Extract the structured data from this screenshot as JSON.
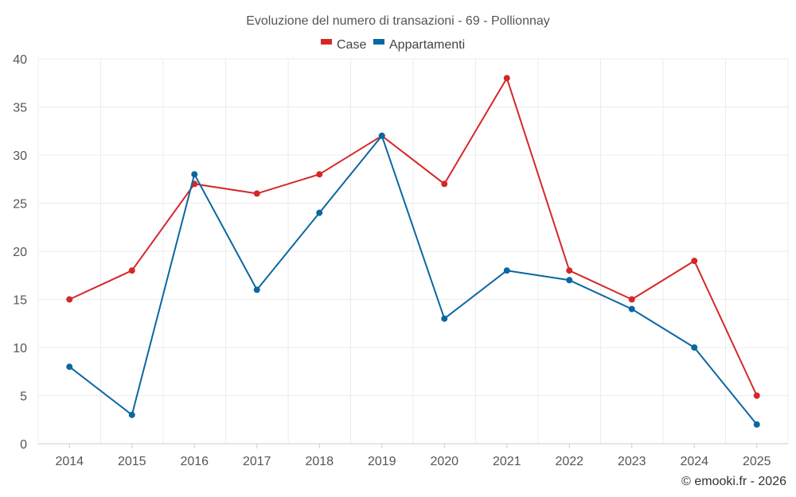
{
  "chart_data": {
    "type": "line",
    "title": "Evoluzione del numero di transazioni - 69 - Pollionnay",
    "categories": [
      "2014",
      "2015",
      "2016",
      "2017",
      "2018",
      "2019",
      "2020",
      "2021",
      "2022",
      "2023",
      "2024",
      "2025"
    ],
    "series": [
      {
        "name": "Case",
        "color": "#d62728",
        "values": [
          15,
          18,
          27,
          26,
          28,
          32,
          27,
          38,
          18,
          15,
          19,
          5
        ]
      },
      {
        "name": "Appartamenti",
        "color": "#0b67a1",
        "values": [
          8,
          3,
          28,
          16,
          24,
          32,
          13,
          18,
          17,
          14,
          10,
          2
        ]
      }
    ],
    "ylim": [
      0,
      40
    ],
    "yticks": [
      0,
      5,
      10,
      15,
      20,
      25,
      30,
      35,
      40
    ],
    "grid": true,
    "legend": "top-center",
    "xlabel": "",
    "ylabel": ""
  },
  "credit": "© emooki.fr - 2026"
}
